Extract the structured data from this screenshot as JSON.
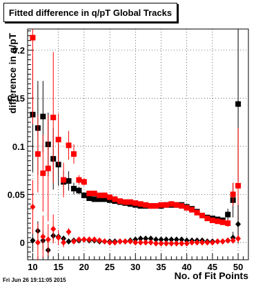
{
  "title": "Fitted difference in q/pT  Global Tracks",
  "timestamp": "Fri Jun 26 19:11:05 2015",
  "chart_data": {
    "type": "scatter",
    "title": "Fitted difference in q/pT  Global Tracks",
    "xlabel": "No. of Fit Points",
    "ylabel": "difference in q/pT",
    "xlim": [
      9,
      52
    ],
    "ylim": [
      -0.018,
      0.222
    ],
    "xticks": [
      10,
      15,
      20,
      25,
      30,
      35,
      40,
      45,
      50
    ],
    "yticks": [
      0,
      0.05,
      0.1,
      0.15,
      0.2
    ],
    "ytick_labels": [
      "0",
      "0.05",
      "0.1",
      "0.15",
      "0.2"
    ],
    "grid": true,
    "series": [
      {
        "color": "#000000",
        "marker": "square",
        "x": [
          10,
          11,
          12,
          13,
          14,
          15,
          16,
          17,
          18,
          19,
          20,
          21,
          22,
          23,
          24,
          25,
          26,
          27,
          28,
          29,
          30,
          31,
          32,
          33,
          34,
          35,
          36,
          37,
          38,
          39,
          40,
          41,
          42,
          43,
          44,
          45,
          46,
          47,
          48,
          49,
          50
        ],
        "y": [
          0.133,
          0.119,
          0.131,
          0.102,
          0.087,
          0.081,
          0.063,
          0.064,
          0.056,
          0.054,
          0.049,
          0.046,
          0.045,
          0.045,
          0.045,
          0.044,
          0.043,
          0.042,
          0.041,
          0.04,
          0.039,
          0.038,
          0.038,
          0.038,
          0.038,
          0.038,
          0.039,
          0.039,
          0.039,
          0.039,
          0.037,
          0.035,
          0.032,
          0.028,
          0.026,
          0.025,
          0.024,
          0.023,
          0.029,
          0.044,
          0.144
        ],
        "err": [
          0.06,
          0.049,
          0.037,
          0.033,
          0.032,
          0.022,
          0.012,
          0.01,
          0.006,
          0.004,
          0.003,
          0.002,
          0.002,
          0.002,
          0.001,
          0.001,
          0.001,
          0.001,
          0.001,
          0.001,
          0.001,
          0.001,
          0.001,
          0.001,
          0.001,
          0.001,
          0.001,
          0.001,
          0.001,
          0.001,
          0.001,
          0.001,
          0.001,
          0.001,
          0.001,
          0.001,
          0.002,
          0.003,
          0.006,
          0.018,
          0.08
        ]
      },
      {
        "color": "#ff0000",
        "marker": "square",
        "x": [
          10,
          11,
          12,
          13,
          14,
          15,
          16,
          17,
          18,
          19,
          20,
          21,
          22,
          23,
          24,
          25,
          26,
          27,
          28,
          29,
          30,
          31,
          32,
          33,
          34,
          35,
          36,
          37,
          38,
          39,
          40,
          41,
          42,
          43,
          44,
          45,
          46,
          47,
          48,
          49,
          50
        ],
        "y": [
          0.213,
          0.092,
          0.072,
          0.077,
          0.13,
          0.107,
          0.065,
          0.101,
          0.092,
          0.065,
          0.063,
          0.051,
          0.051,
          0.049,
          0.049,
          0.047,
          0.045,
          0.043,
          0.042,
          0.042,
          0.041,
          0.04,
          0.039,
          0.038,
          0.038,
          0.039,
          0.039,
          0.04,
          0.039,
          0.038,
          0.036,
          0.034,
          0.031,
          0.028,
          0.025,
          0.023,
          0.022,
          0.021,
          0.02,
          0.05,
          0.059
        ],
        "err": [
          0.09,
          0.04,
          0.04,
          0.055,
          0.068,
          0.027,
          0.018,
          0.015,
          0.01,
          0.005,
          0.004,
          0.002,
          0.002,
          0.002,
          0.002,
          0.001,
          0.001,
          0.001,
          0.001,
          0.001,
          0.001,
          0.001,
          0.001,
          0.001,
          0.001,
          0.001,
          0.001,
          0.001,
          0.001,
          0.001,
          0.001,
          0.001,
          0.001,
          0.001,
          0.001,
          0.002,
          0.002,
          0.003,
          0.004,
          0.012,
          0.06
        ]
      },
      {
        "color": "#000000",
        "marker": "diamond",
        "x": [
          10,
          11,
          12,
          13,
          14,
          15,
          16,
          17,
          18,
          19,
          20,
          21,
          22,
          23,
          24,
          25,
          26,
          27,
          28,
          29,
          30,
          31,
          32,
          33,
          34,
          35,
          36,
          37,
          38,
          39,
          40,
          41,
          42,
          43,
          44,
          45,
          46,
          47,
          48,
          49,
          50
        ],
        "y": [
          0.002,
          0.012,
          0.002,
          -0.008,
          0.007,
          0.006,
          0.004,
          0.001,
          0.002,
          0.002,
          0.003,
          0.002,
          0.002,
          0.001,
          0.001,
          0.001,
          0.001,
          0.001,
          0.001,
          0.002,
          0.003,
          0.004,
          0.004,
          0.004,
          0.003,
          0.003,
          0.003,
          0.003,
          0.003,
          0.003,
          0.002,
          0.002,
          0.002,
          0.002,
          0.001,
          0.001,
          0.001,
          0.001,
          0.002,
          0.005,
          0.019
        ],
        "err": [
          0.012,
          0.01,
          0.01,
          0.008,
          0.006,
          0.004,
          0.003,
          0.002,
          0.001,
          0.001,
          0.001,
          0.001,
          0.001,
          0.001,
          0.001,
          0.001,
          0.001,
          0.001,
          0.001,
          0.001,
          0.001,
          0.001,
          0.001,
          0.001,
          0.001,
          0.001,
          0.001,
          0.001,
          0.001,
          0.001,
          0.001,
          0.001,
          0.001,
          0.001,
          0.001,
          0.001,
          0.001,
          0.001,
          0.002,
          0.006,
          0.02
        ]
      },
      {
        "color": "#ff0000",
        "marker": "diamond",
        "x": [
          10,
          11,
          12,
          13,
          14,
          15,
          16,
          17,
          18,
          19,
          20,
          21,
          22,
          23,
          24,
          25,
          26,
          27,
          28,
          29,
          30,
          31,
          32,
          33,
          34,
          35,
          36,
          37,
          38,
          39,
          40,
          41,
          42,
          43,
          44,
          45,
          46,
          47,
          48,
          49,
          50
        ],
        "y": [
          0.037,
          0.0,
          0.006,
          0.003,
          0.014,
          0.005,
          0.0,
          0.011,
          0.001,
          0.003,
          0.003,
          0.003,
          0.003,
          0.002,
          0.001,
          0.0,
          0.0,
          0.001,
          0.001,
          0.001,
          0.0,
          0.0,
          0.0,
          0.0,
          -0.001,
          -0.001,
          -0.001,
          -0.001,
          -0.001,
          -0.001,
          -0.001,
          0.0,
          0.0,
          0.0,
          0.0,
          0.0,
          0.001,
          0.001,
          0.002,
          0.002,
          0.004
        ],
        "err": [
          0.028,
          0.02,
          0.022,
          0.016,
          0.015,
          0.008,
          0.005,
          0.004,
          0.002,
          0.002,
          0.001,
          0.001,
          0.001,
          0.001,
          0.001,
          0.001,
          0.001,
          0.001,
          0.001,
          0.001,
          0.001,
          0.001,
          0.001,
          0.001,
          0.001,
          0.001,
          0.001,
          0.001,
          0.001,
          0.001,
          0.001,
          0.001,
          0.001,
          0.001,
          0.001,
          0.001,
          0.001,
          0.001,
          0.002,
          0.003,
          0.004
        ]
      }
    ]
  }
}
